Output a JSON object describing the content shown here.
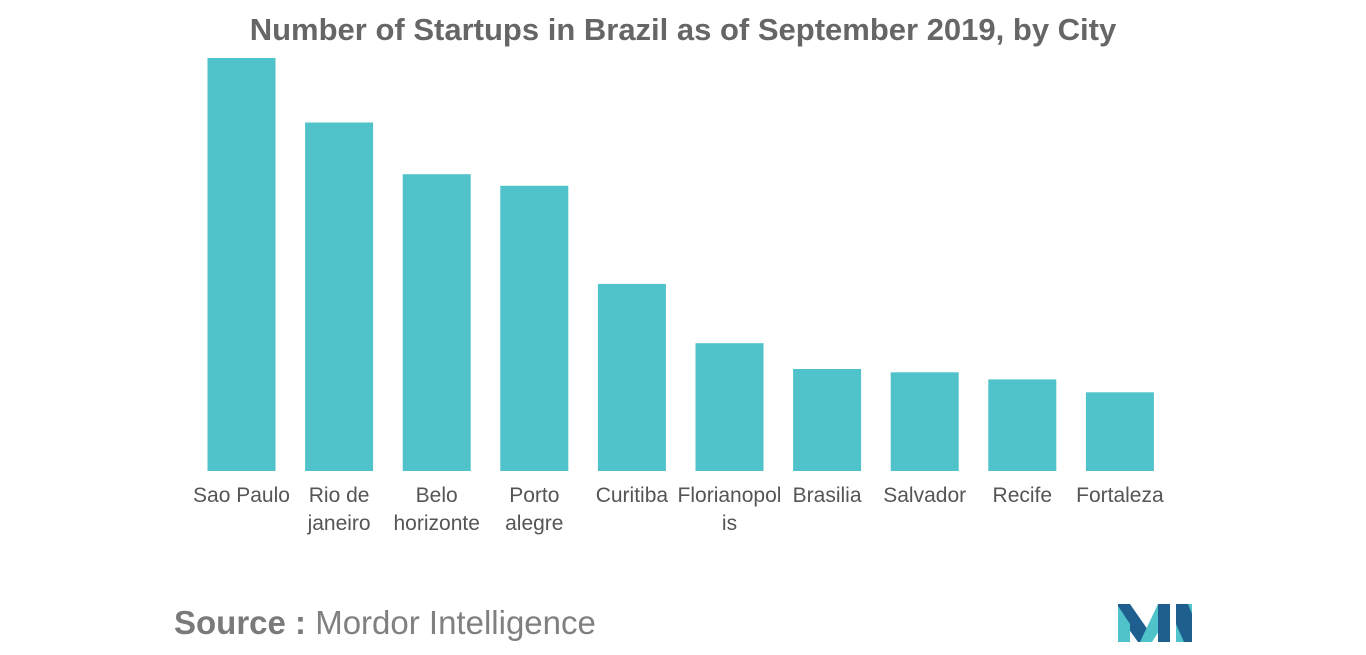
{
  "chart_data": {
    "type": "bar",
    "title": "Number of Startups in Brazil as of September 2019, by City",
    "xlabel": "",
    "ylabel": "",
    "categories": [
      [
        "Sao Paulo"
      ],
      [
        "Rio de",
        "janeiro"
      ],
      [
        "Belo",
        "horizonte"
      ],
      [
        "Porto",
        "alegre"
      ],
      [
        "Curitiba"
      ],
      [
        "Florianopol",
        "is"
      ],
      [
        "Brasilia"
      ],
      [
        "Salvador"
      ],
      [
        "Recife"
      ],
      [
        "Fortaleza"
      ]
    ],
    "values": [
      3200,
      2700,
      2300,
      2210,
      1450,
      990,
      790,
      765,
      710,
      610
    ],
    "ylim": [
      0,
      3200
    ],
    "grid": false,
    "legend": "none",
    "bar_color": "#4fc3c9"
  },
  "source": {
    "label": "Source :",
    "value": "Mordor Intelligence"
  },
  "logo": {
    "icon": "mordor-intelligence-logo-icon",
    "colors": [
      "#1e5f8f",
      "#4fc3c9"
    ]
  }
}
